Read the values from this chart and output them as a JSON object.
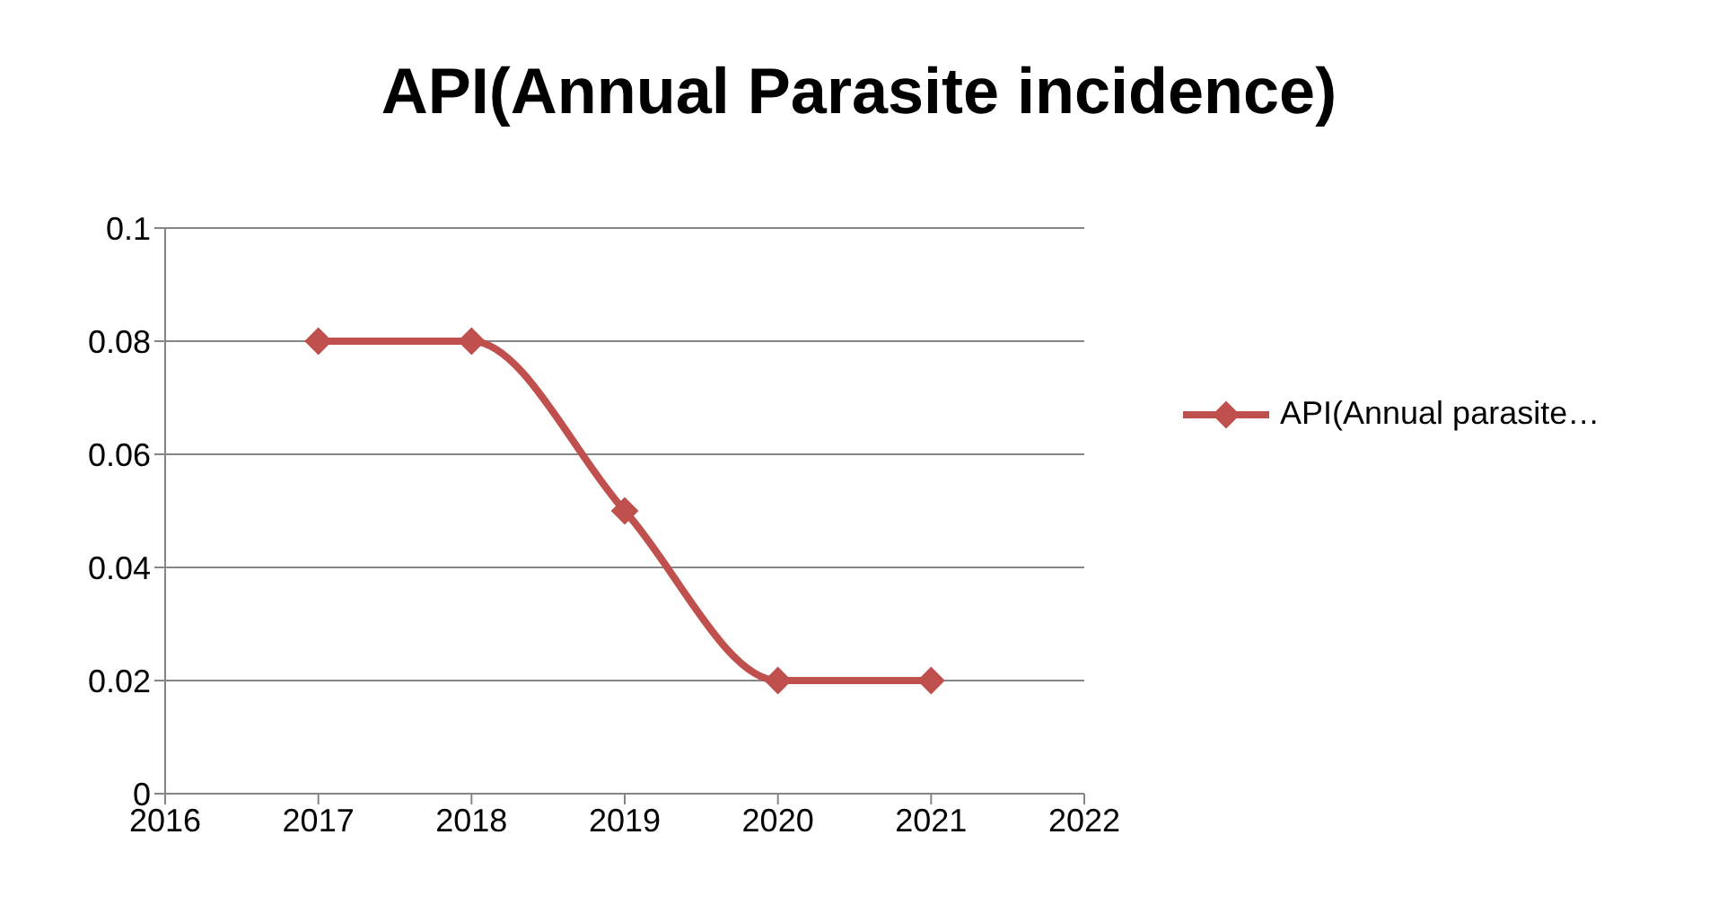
{
  "chart_data": {
    "type": "line",
    "title": "API(Annual Parasite incidence)",
    "x": [
      2017,
      2018,
      2019,
      2020,
      2021
    ],
    "series": [
      {
        "name": "API(Annual parasite…",
        "color": "#c0504d",
        "values": [
          0.08,
          0.08,
          0.05,
          0.02,
          0.02
        ]
      }
    ],
    "xlim": [
      2016,
      2022
    ],
    "xticks": [
      2016,
      2017,
      2018,
      2019,
      2020,
      2021,
      2022
    ],
    "ylim": [
      0,
      0.1
    ],
    "yticks": [
      0,
      0.02,
      0.04,
      0.06,
      0.08,
      0.1
    ],
    "grid": "y",
    "legend": "right",
    "marker": "diamond",
    "line_style": "solid"
  }
}
